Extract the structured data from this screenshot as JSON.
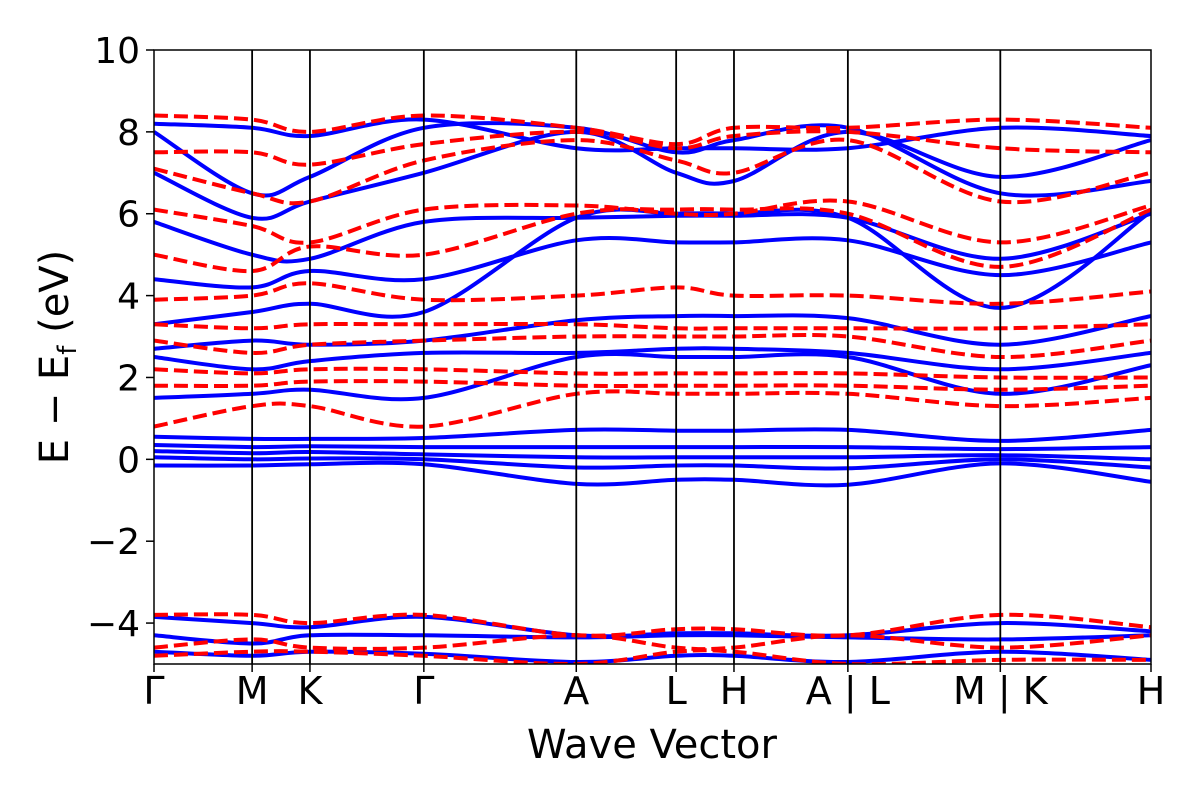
{
  "chart_data": {
    "type": "line",
    "xlabel": "Wave Vector",
    "ylabel_parts": {
      "main": "E − E",
      "sub": "f",
      "unit": " (eV)"
    },
    "ylim": [
      -5,
      10
    ],
    "y_ticks": [
      -4,
      -2,
      0,
      2,
      4,
      6,
      8,
      10
    ],
    "y_tick_labels": [
      "−4",
      "−2",
      "0",
      "2",
      "4",
      "6",
      "8",
      "10"
    ],
    "x_ticks": [
      0.0,
      0.56,
      0.89,
      1.54,
      2.41,
      2.98,
      3.31,
      3.96,
      4.83,
      5.69
    ],
    "x_tick_labels": [
      "Γ",
      "M",
      "K",
      "Γ",
      "A",
      "L",
      "H",
      "A | L",
      "M | K",
      "H"
    ],
    "xlim": [
      0.0,
      5.69
    ],
    "grid": false,
    "legend": "none",
    "colors": {
      "solid": "#0000ff",
      "dashed": "#ff0000"
    },
    "series": [
      {
        "style": "solid",
        "color": "#0000ff",
        "x": [
          0,
          0.56,
          0.89,
          1.54,
          2.41,
          2.98,
          3.31,
          3.96,
          4.83,
          5.69
        ],
        "y": [
          -0.15,
          -0.15,
          -0.12,
          -0.12,
          -0.6,
          -0.5,
          -0.5,
          -0.62,
          -0.1,
          -0.55
        ]
      },
      {
        "style": "solid",
        "color": "#0000ff",
        "x": [
          0,
          0.56,
          0.89,
          1.54,
          2.41,
          2.98,
          3.31,
          3.96,
          4.83,
          5.69
        ],
        "y": [
          0.05,
          0.0,
          0.02,
          0.0,
          -0.2,
          -0.15,
          -0.15,
          -0.22,
          0.0,
          -0.2
        ]
      },
      {
        "style": "solid",
        "color": "#0000ff",
        "x": [
          0,
          0.56,
          0.89,
          1.54,
          2.41,
          2.98,
          3.31,
          3.96,
          4.83,
          5.69
        ],
        "y": [
          0.2,
          0.15,
          0.18,
          0.12,
          0.05,
          0.05,
          0.05,
          0.05,
          0.1,
          0.0
        ]
      },
      {
        "style": "solid",
        "color": "#0000ff",
        "x": [
          0,
          0.56,
          0.89,
          1.54,
          2.41,
          2.98,
          3.31,
          3.96,
          4.83,
          5.69
        ],
        "y": [
          0.35,
          0.3,
          0.32,
          0.3,
          0.3,
          0.3,
          0.3,
          0.3,
          0.25,
          0.3
        ]
      },
      {
        "style": "solid",
        "color": "#0000ff",
        "x": [
          0,
          0.56,
          0.89,
          1.54,
          2.41,
          2.98,
          3.31,
          3.96,
          4.83,
          5.69
        ],
        "y": [
          0.55,
          0.5,
          0.5,
          0.52,
          0.72,
          0.7,
          0.7,
          0.72,
          0.45,
          0.72
        ]
      },
      {
        "style": "solid",
        "color": "#0000ff",
        "x": [
          0,
          0.56,
          0.89,
          1.54,
          2.41,
          2.98,
          3.31,
          3.96,
          4.83,
          5.69
        ],
        "y": [
          1.5,
          1.6,
          1.7,
          1.5,
          2.5,
          2.5,
          2.5,
          2.5,
          1.6,
          2.3
        ]
      },
      {
        "style": "solid",
        "color": "#0000ff",
        "x": [
          0,
          0.56,
          0.89,
          1.54,
          2.41,
          2.98,
          3.31,
          3.96,
          4.83,
          5.69
        ],
        "y": [
          2.5,
          2.2,
          2.4,
          2.6,
          2.6,
          2.7,
          2.7,
          2.6,
          2.2,
          2.6
        ]
      },
      {
        "style": "solid",
        "color": "#0000ff",
        "x": [
          0,
          0.56,
          0.89,
          1.54,
          2.41,
          2.98,
          3.31,
          3.96,
          4.83,
          5.69
        ],
        "y": [
          2.7,
          2.9,
          2.8,
          2.9,
          3.4,
          3.5,
          3.5,
          3.45,
          2.8,
          3.5
        ]
      },
      {
        "style": "solid",
        "color": "#0000ff",
        "x": [
          0,
          0.56,
          0.89,
          1.54,
          2.41,
          2.98,
          3.31,
          3.96,
          4.83,
          5.69
        ],
        "y": [
          3.3,
          3.6,
          3.8,
          3.6,
          5.9,
          6.0,
          6.0,
          5.9,
          3.7,
          6.05
        ]
      },
      {
        "style": "solid",
        "color": "#0000ff",
        "x": [
          0,
          0.56,
          0.89,
          1.54,
          2.41,
          2.98,
          3.31,
          3.96,
          4.83,
          5.69
        ],
        "y": [
          4.4,
          4.2,
          4.6,
          4.4,
          5.35,
          5.3,
          5.3,
          5.35,
          4.5,
          5.3
        ]
      },
      {
        "style": "solid",
        "color": "#0000ff",
        "x": [
          0,
          0.56,
          0.89,
          1.54,
          2.41,
          2.98,
          3.31,
          3.96,
          4.83,
          5.69
        ],
        "y": [
          5.8,
          5.0,
          4.9,
          5.8,
          5.9,
          5.95,
          5.95,
          5.9,
          4.9,
          6.0
        ]
      },
      {
        "style": "solid",
        "color": "#0000ff",
        "x": [
          0,
          0.56,
          0.89,
          1.54,
          2.41,
          2.98,
          3.31,
          3.96,
          4.83,
          5.69
        ],
        "y": [
          7.0,
          5.9,
          6.3,
          7.0,
          8.0,
          7.0,
          6.8,
          8.0,
          6.9,
          7.8
        ]
      },
      {
        "style": "solid",
        "color": "#0000ff",
        "x": [
          0,
          0.56,
          0.89,
          1.54,
          2.41,
          2.98,
          3.31,
          3.96,
          4.83,
          5.69
        ],
        "y": [
          8.0,
          6.5,
          6.9,
          8.1,
          8.1,
          7.5,
          7.8,
          8.1,
          6.5,
          6.8
        ]
      },
      {
        "style": "solid",
        "color": "#0000ff",
        "x": [
          0,
          0.56,
          0.89,
          1.54,
          2.41,
          2.98,
          3.31,
          3.96,
          4.83,
          5.69
        ],
        "y": [
          8.2,
          8.1,
          7.9,
          8.3,
          7.6,
          7.6,
          7.6,
          7.6,
          8.1,
          7.9
        ]
      },
      {
        "style": "solid",
        "color": "#0000ff",
        "x": [
          0,
          0.56,
          0.89,
          1.54,
          2.41,
          2.98,
          3.31,
          3.96,
          4.83,
          5.69
        ],
        "y": [
          -3.85,
          -4.0,
          -4.1,
          -3.85,
          -4.3,
          -4.25,
          -4.25,
          -4.3,
          -4.0,
          -4.2
        ]
      },
      {
        "style": "solid",
        "color": "#0000ff",
        "x": [
          0,
          0.56,
          0.89,
          1.54,
          2.41,
          2.98,
          3.31,
          3.96,
          4.83,
          5.69
        ],
        "y": [
          -4.3,
          -4.5,
          -4.3,
          -4.3,
          -4.35,
          -4.3,
          -4.3,
          -4.35,
          -4.4,
          -4.3
        ]
      },
      {
        "style": "solid",
        "color": "#0000ff",
        "x": [
          0,
          0.56,
          0.89,
          1.54,
          2.41,
          2.98,
          3.31,
          3.96,
          4.83,
          5.69
        ],
        "y": [
          -4.7,
          -4.8,
          -4.7,
          -4.75,
          -4.95,
          -4.8,
          -4.8,
          -4.95,
          -4.7,
          -4.9
        ]
      },
      {
        "style": "dashed",
        "color": "#ff0000",
        "x": [
          0,
          0.56,
          0.89,
          1.54,
          2.41,
          2.98,
          3.31,
          3.96,
          4.83,
          5.69
        ],
        "y": [
          0.8,
          1.3,
          1.3,
          0.8,
          1.6,
          1.6,
          1.6,
          1.6,
          1.3,
          1.5
        ]
      },
      {
        "style": "dashed",
        "color": "#ff0000",
        "x": [
          0,
          0.56,
          0.89,
          1.54,
          2.41,
          2.98,
          3.31,
          3.96,
          4.83,
          5.69
        ],
        "y": [
          1.8,
          1.8,
          1.9,
          1.9,
          1.8,
          1.8,
          1.8,
          1.8,
          1.7,
          1.8
        ]
      },
      {
        "style": "dashed",
        "color": "#ff0000",
        "x": [
          0,
          0.56,
          0.89,
          1.54,
          2.41,
          2.98,
          3.31,
          3.96,
          4.83,
          5.69
        ],
        "y": [
          2.2,
          2.1,
          2.2,
          2.2,
          2.1,
          2.1,
          2.1,
          2.1,
          2.0,
          2.0
        ]
      },
      {
        "style": "dashed",
        "color": "#ff0000",
        "x": [
          0,
          0.56,
          0.89,
          1.54,
          2.41,
          2.98,
          3.31,
          3.96,
          4.83,
          5.69
        ],
        "y": [
          2.9,
          2.6,
          2.8,
          2.9,
          3.0,
          3.0,
          3.0,
          3.0,
          2.5,
          2.9
        ]
      },
      {
        "style": "dashed",
        "color": "#ff0000",
        "x": [
          0,
          0.56,
          0.89,
          1.54,
          2.41,
          2.98,
          3.31,
          3.96,
          4.83,
          5.69
        ],
        "y": [
          3.3,
          3.2,
          3.3,
          3.3,
          3.3,
          3.2,
          3.2,
          3.2,
          3.2,
          3.3
        ]
      },
      {
        "style": "dashed",
        "color": "#ff0000",
        "x": [
          0,
          0.56,
          0.89,
          1.54,
          2.41,
          2.98,
          3.31,
          3.96,
          4.83,
          5.69
        ],
        "y": [
          3.9,
          4.0,
          4.3,
          3.9,
          4.0,
          4.2,
          4.0,
          4.0,
          3.8,
          4.1
        ]
      },
      {
        "style": "dashed",
        "color": "#ff0000",
        "x": [
          0,
          0.56,
          0.89,
          1.54,
          2.41,
          2.98,
          3.31,
          3.96,
          4.83,
          5.69
        ],
        "y": [
          5.0,
          4.6,
          5.2,
          5.0,
          6.0,
          6.1,
          6.1,
          6.0,
          4.7,
          6.1
        ]
      },
      {
        "style": "dashed",
        "color": "#ff0000",
        "x": [
          0,
          0.56,
          0.89,
          1.54,
          2.41,
          2.98,
          3.31,
          3.96,
          4.83,
          5.69
        ],
        "y": [
          6.1,
          5.7,
          5.3,
          6.1,
          6.2,
          6.0,
          6.0,
          6.3,
          5.3,
          6.2
        ]
      },
      {
        "style": "dashed",
        "color": "#ff0000",
        "x": [
          0,
          0.56,
          0.89,
          1.54,
          2.41,
          2.98,
          3.31,
          3.96,
          4.83,
          5.69
        ],
        "y": [
          7.1,
          6.5,
          6.3,
          7.3,
          7.8,
          7.3,
          7.0,
          7.8,
          6.3,
          7.0
        ]
      },
      {
        "style": "dashed",
        "color": "#ff0000",
        "x": [
          0,
          0.56,
          0.89,
          1.54,
          2.41,
          2.98,
          3.31,
          3.96,
          4.83,
          5.69
        ],
        "y": [
          7.5,
          7.5,
          7.2,
          7.7,
          8.0,
          7.6,
          7.9,
          8.0,
          7.6,
          7.5
        ]
      },
      {
        "style": "dashed",
        "color": "#ff0000",
        "x": [
          0,
          0.56,
          0.89,
          1.54,
          2.41,
          2.98,
          3.31,
          3.96,
          4.83,
          5.69
        ],
        "y": [
          8.4,
          8.3,
          8.0,
          8.4,
          8.1,
          7.7,
          8.1,
          8.1,
          8.3,
          8.1
        ]
      },
      {
        "style": "dashed",
        "color": "#ff0000",
        "x": [
          0,
          0.56,
          0.89,
          1.54,
          2.41,
          2.98,
          3.31,
          3.96,
          4.83,
          5.69
        ],
        "y": [
          -3.8,
          -3.8,
          -4.0,
          -3.8,
          -4.3,
          -4.15,
          -4.15,
          -4.3,
          -3.8,
          -4.1
        ]
      },
      {
        "style": "dashed",
        "color": "#ff0000",
        "x": [
          0,
          0.56,
          0.89,
          1.54,
          2.41,
          2.98,
          3.31,
          3.96,
          4.83,
          5.69
        ],
        "y": [
          -4.6,
          -4.4,
          -4.6,
          -4.6,
          -4.3,
          -4.6,
          -4.6,
          -4.3,
          -4.6,
          -4.3
        ]
      },
      {
        "style": "dashed",
        "color": "#ff0000",
        "x": [
          0,
          0.56,
          0.89,
          1.54,
          2.41,
          2.98,
          3.31,
          3.96,
          4.83,
          5.69
        ],
        "y": [
          -4.8,
          -4.7,
          -4.7,
          -4.8,
          -5.0,
          -4.7,
          -4.7,
          -5.0,
          -4.9,
          -4.9
        ]
      }
    ]
  }
}
